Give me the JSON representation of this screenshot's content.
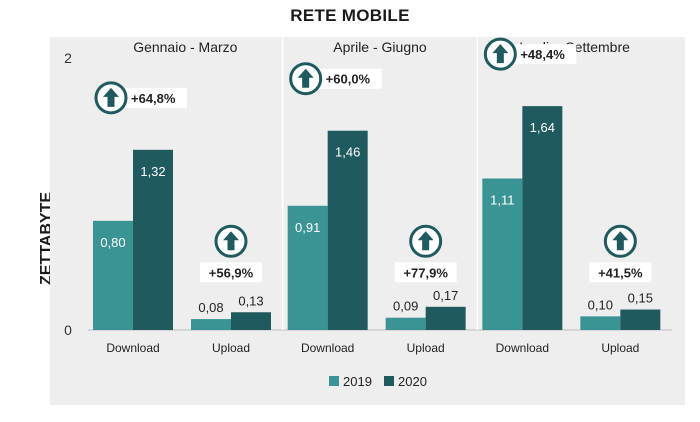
{
  "chart_data": {
    "type": "bar",
    "title": "RETE MOBILE",
    "ylabel": "ZETTABYTE",
    "ylim": [
      0,
      2
    ],
    "yticks": [
      "0",
      "2"
    ],
    "groups": [
      {
        "label": "Gennaio - Marzo",
        "categories": [
          {
            "label": "Download",
            "values": [
              0.8,
              1.32
            ],
            "value_labels": [
              "0,80",
              "1,32"
            ],
            "growth": "+64,8%"
          },
          {
            "label": "Upload",
            "values": [
              0.08,
              0.13
            ],
            "value_labels": [
              "0,08",
              "0,13"
            ],
            "growth": "+56,9%"
          }
        ]
      },
      {
        "label": "Aprile - Giugno",
        "categories": [
          {
            "label": "Download",
            "values": [
              0.91,
              1.46
            ],
            "value_labels": [
              "0,91",
              "1,46"
            ],
            "growth": "+60,0%"
          },
          {
            "label": "Upload",
            "values": [
              0.09,
              0.17
            ],
            "value_labels": [
              "0,09",
              "0,17"
            ],
            "growth": "+77,9%"
          }
        ]
      },
      {
        "label": "Luglio -Settembre",
        "categories": [
          {
            "label": "Download",
            "values": [
              1.11,
              1.64
            ],
            "value_labels": [
              "1,11",
              "1,64"
            ],
            "growth": "+48,4%"
          },
          {
            "label": "Upload",
            "values": [
              0.1,
              0.15
            ],
            "value_labels": [
              "0,10",
              "0,15"
            ],
            "growth": "+41,5%"
          }
        ]
      }
    ],
    "series": [
      {
        "name": "2019",
        "color": "#3a9494"
      },
      {
        "name": "2020",
        "color": "#1f5a5e"
      }
    ],
    "growth_icon": "up-arrow-circle-icon",
    "legend_position": "bottom",
    "grid": false
  }
}
